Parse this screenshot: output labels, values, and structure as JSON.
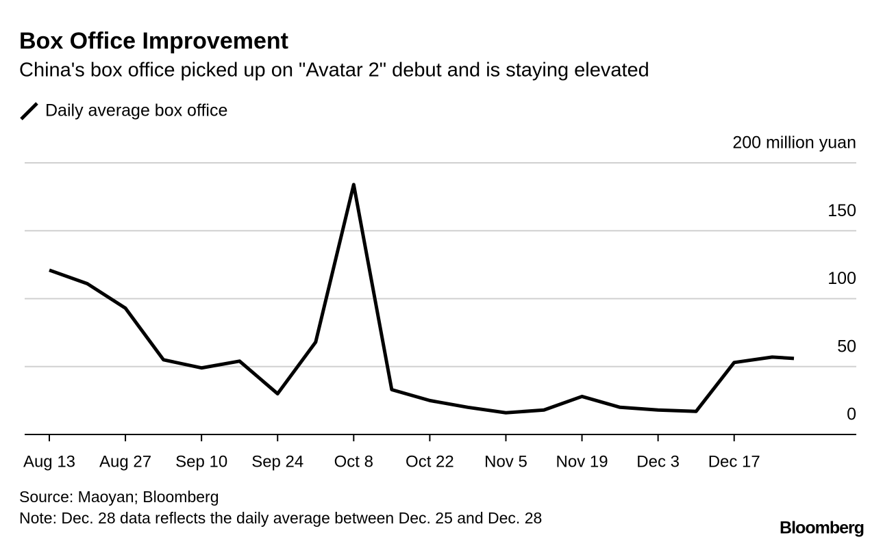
{
  "chart_data": {
    "type": "line",
    "title": "Box Office Improvement",
    "subtitle": "China's box office picked up on \"Avatar 2\" debut and is staying elevated",
    "x": [
      "Aug 13",
      "Aug 20",
      "Aug 27",
      "Sep 3",
      "Sep 10",
      "Sep 17",
      "Sep 24",
      "Oct 1",
      "Oct 8",
      "Oct 15",
      "Oct 22",
      "Oct 29",
      "Nov 5",
      "Nov 12",
      "Nov 19",
      "Nov 26",
      "Dec 3",
      "Dec 10",
      "Dec 17",
      "Dec 24",
      "Dec 28"
    ],
    "series": [
      {
        "name": "Daily average box office",
        "color": "#000000",
        "values": [
          121,
          111,
          93,
          55,
          49,
          54,
          30,
          68,
          184,
          33,
          25,
          20,
          16,
          18,
          28,
          20,
          18,
          17,
          53,
          57,
          56
        ]
      }
    ],
    "xticks": [
      "Aug 13",
      "Aug 27",
      "Sep 10",
      "Sep 24",
      "Oct 8",
      "Oct 22",
      "Nov 5",
      "Nov 19",
      "Dec 3",
      "Dec 17"
    ],
    "ylim": [
      0,
      200
    ],
    "yticks": [
      0,
      50,
      100,
      150,
      {
        "value": 200,
        "label": "200 million yuan"
      }
    ],
    "grid": true,
    "source": "Source: Maoyan; Bloomberg",
    "note": "Note: Dec. 28 data reflects the daily average between Dec. 25 and Dec. 28",
    "brand": "Bloomberg"
  }
}
